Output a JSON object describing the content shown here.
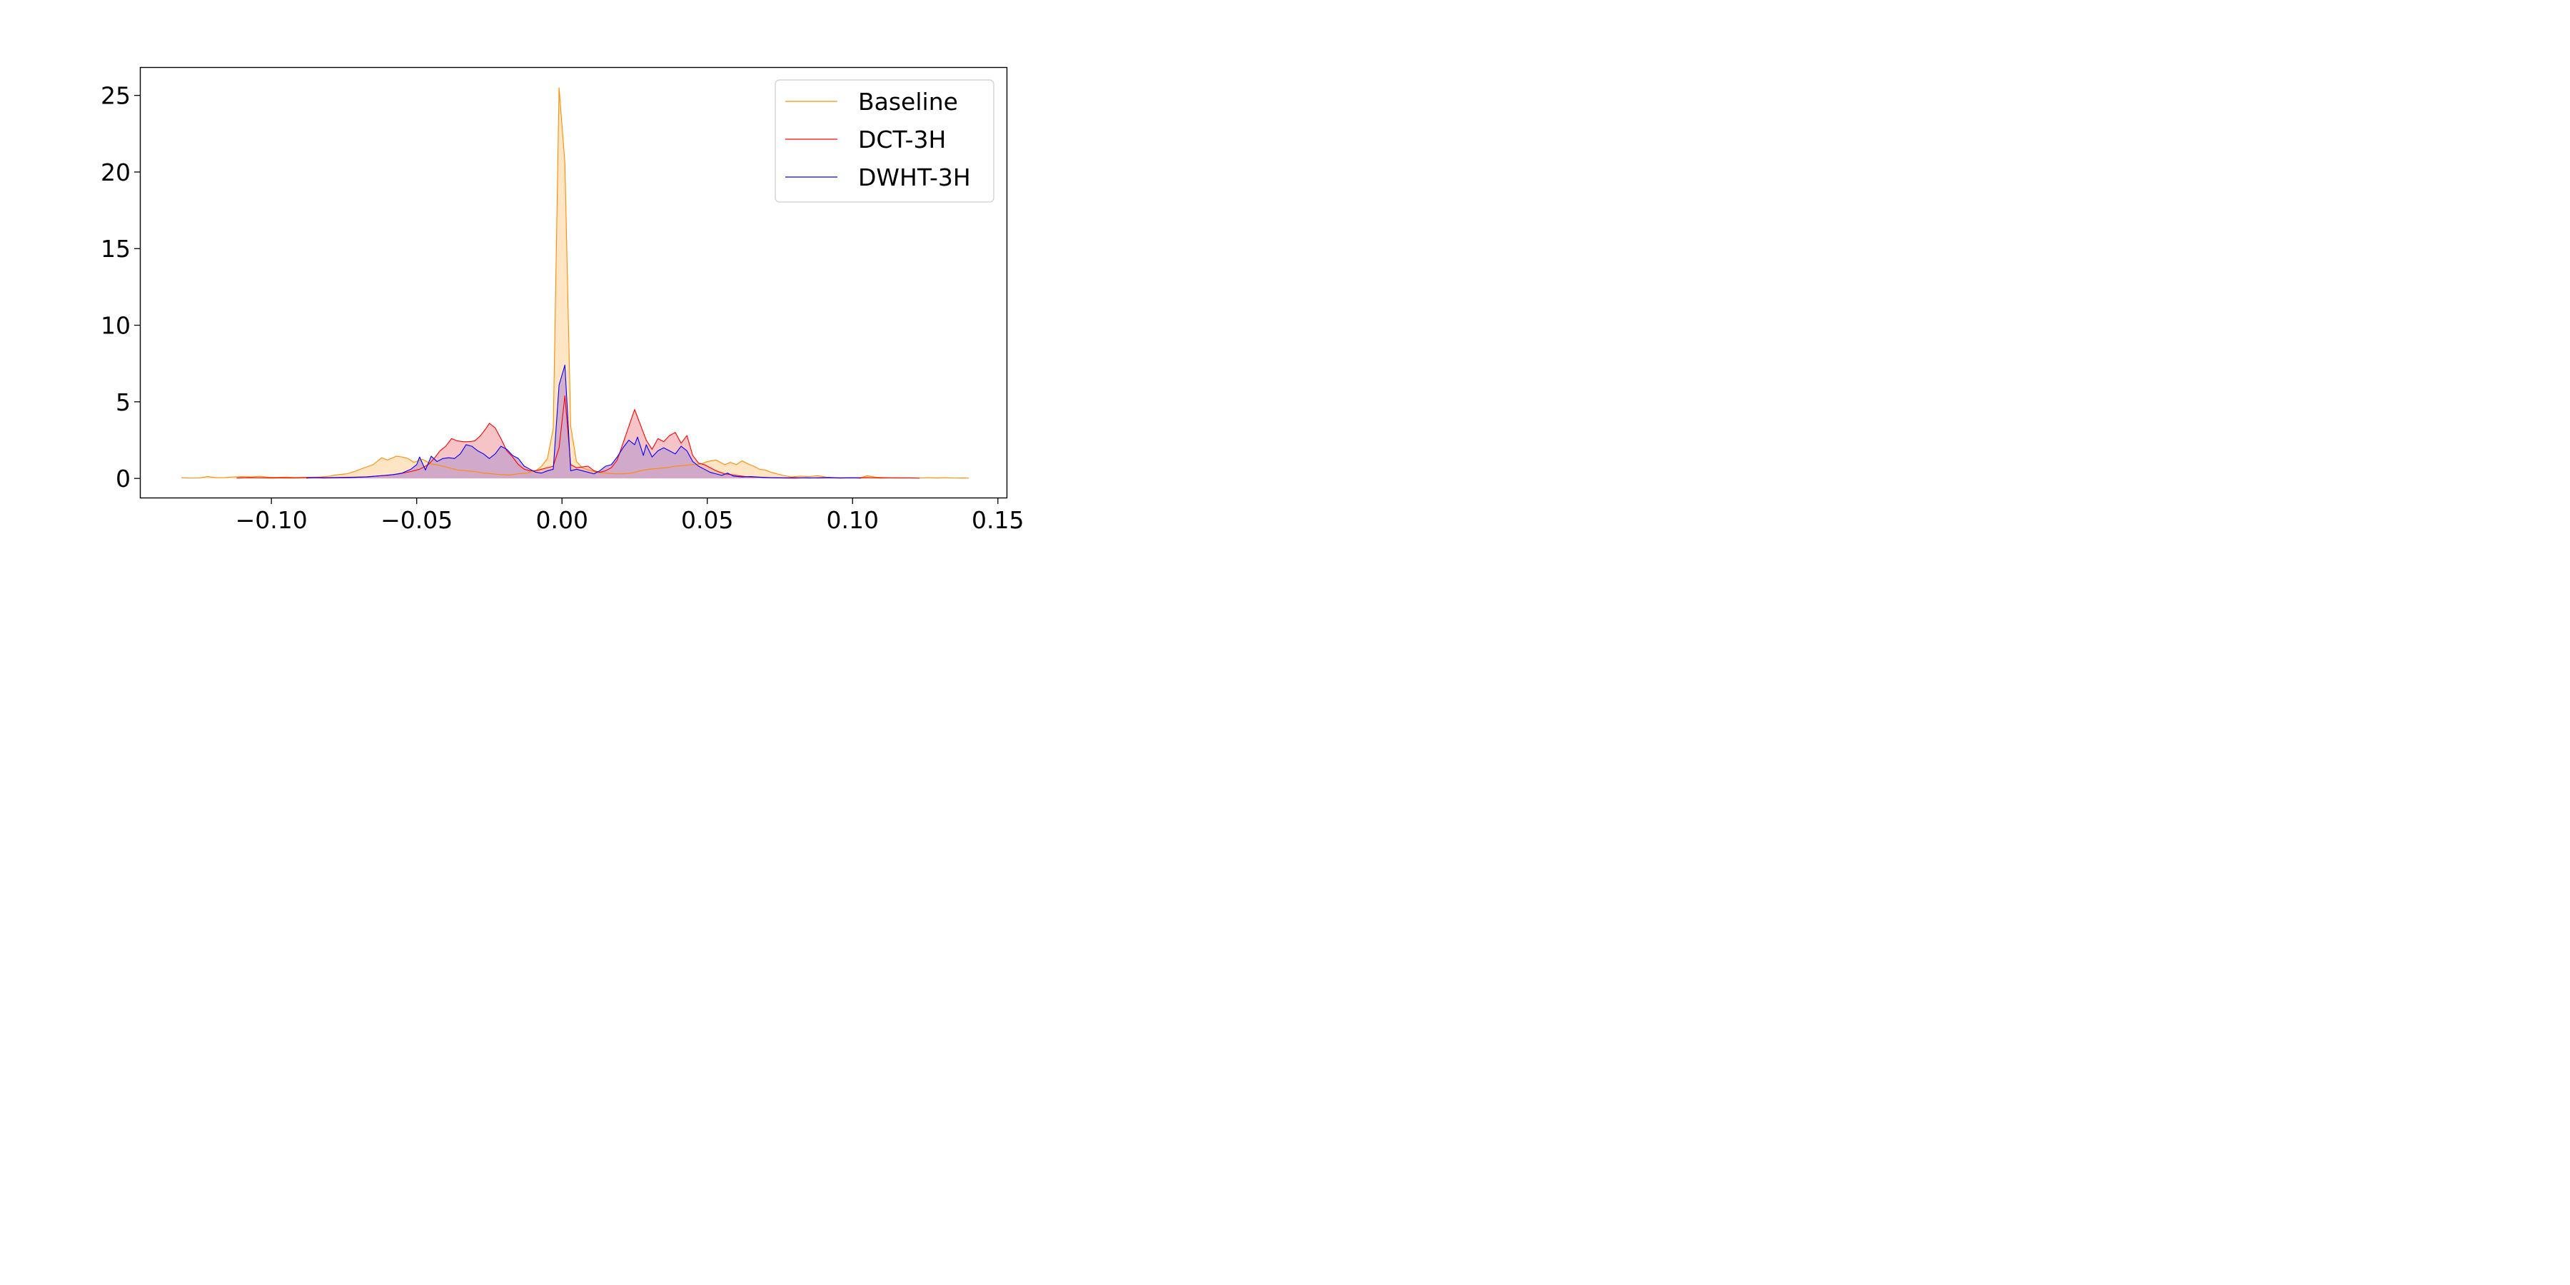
{
  "chart_data": {
    "type": "area",
    "title": "",
    "xlabel": "",
    "ylabel": "",
    "xlim": [
      -0.145,
      0.153
    ],
    "ylim": [
      -1.25,
      26.8
    ],
    "xticks": [
      -0.1,
      -0.05,
      0.0,
      0.05,
      0.1,
      0.15
    ],
    "xtick_labels": [
      "−0.10",
      "−0.05",
      "0.00",
      "0.05",
      "0.10",
      "0.15"
    ],
    "yticks": [
      0,
      5,
      10,
      15,
      20,
      25
    ],
    "ytick_labels": [
      "0",
      "5",
      "10",
      "15",
      "20",
      "25"
    ],
    "grid": false,
    "legend_position": "top-right",
    "series": [
      {
        "name": "Baseline",
        "color": "#ff8c00",
        "fill": "#ffe1b8",
        "points": [
          [
            -0.131,
            0.05
          ],
          [
            -0.128,
            0.02
          ],
          [
            -0.125,
            0.03
          ],
          [
            -0.122,
            0.12
          ],
          [
            -0.119,
            0.05
          ],
          [
            -0.116,
            0.06
          ],
          [
            -0.113,
            0.1
          ],
          [
            -0.11,
            0.12
          ],
          [
            -0.107,
            0.1
          ],
          [
            -0.104,
            0.14
          ],
          [
            -0.101,
            0.08
          ],
          [
            -0.098,
            0.07
          ],
          [
            -0.095,
            0.09
          ],
          [
            -0.092,
            0.06
          ],
          [
            -0.089,
            0.07
          ],
          [
            -0.086,
            0.08
          ],
          [
            -0.083,
            0.1
          ],
          [
            -0.08,
            0.15
          ],
          [
            -0.077,
            0.25
          ],
          [
            -0.074,
            0.3
          ],
          [
            -0.071,
            0.48
          ],
          [
            -0.068,
            0.7
          ],
          [
            -0.065,
            0.9
          ],
          [
            -0.062,
            1.35
          ],
          [
            -0.06,
            1.2
          ],
          [
            -0.057,
            1.45
          ],
          [
            -0.055,
            1.4
          ],
          [
            -0.053,
            1.3
          ],
          [
            -0.051,
            1.05
          ],
          [
            -0.048,
            1.25
          ],
          [
            -0.045,
            0.95
          ],
          [
            -0.042,
            0.85
          ],
          [
            -0.039,
            0.7
          ],
          [
            -0.036,
            0.55
          ],
          [
            -0.033,
            0.5
          ],
          [
            -0.03,
            0.45
          ],
          [
            -0.027,
            0.35
          ],
          [
            -0.024,
            0.3
          ],
          [
            -0.021,
            0.25
          ],
          [
            -0.018,
            0.22
          ],
          [
            -0.015,
            0.3
          ],
          [
            -0.012,
            0.35
          ],
          [
            -0.009,
            0.5
          ],
          [
            -0.007,
            0.8
          ],
          [
            -0.005,
            1.3
          ],
          [
            -0.003,
            3.3
          ],
          [
            -0.001,
            25.5
          ],
          [
            0.001,
            20.6
          ],
          [
            0.003,
            3.4
          ],
          [
            0.005,
            1.1
          ],
          [
            0.007,
            0.7
          ],
          [
            0.009,
            0.55
          ],
          [
            0.012,
            0.4
          ],
          [
            0.015,
            0.35
          ],
          [
            0.018,
            0.3
          ],
          [
            0.021,
            0.3
          ],
          [
            0.024,
            0.35
          ],
          [
            0.027,
            0.5
          ],
          [
            0.03,
            0.6
          ],
          [
            0.033,
            0.65
          ],
          [
            0.036,
            0.7
          ],
          [
            0.039,
            0.8
          ],
          [
            0.042,
            0.85
          ],
          [
            0.045,
            0.9
          ],
          [
            0.048,
            0.95
          ],
          [
            0.05,
            1.1
          ],
          [
            0.053,
            1.2
          ],
          [
            0.056,
            0.9
          ],
          [
            0.058,
            1.05
          ],
          [
            0.06,
            0.9
          ],
          [
            0.062,
            1.15
          ],
          [
            0.064,
            0.95
          ],
          [
            0.066,
            0.8
          ],
          [
            0.068,
            0.6
          ],
          [
            0.07,
            0.55
          ],
          [
            0.072,
            0.4
          ],
          [
            0.074,
            0.3
          ],
          [
            0.076,
            0.2
          ],
          [
            0.079,
            0.1
          ],
          [
            0.082,
            0.15
          ],
          [
            0.085,
            0.12
          ],
          [
            0.088,
            0.18
          ],
          [
            0.091,
            0.08
          ],
          [
            0.094,
            0.05
          ],
          [
            0.097,
            0.05
          ],
          [
            0.1,
            0.04
          ],
          [
            0.103,
            0.06
          ],
          [
            0.105,
            0.18
          ],
          [
            0.108,
            0.08
          ],
          [
            0.111,
            0.05
          ],
          [
            0.114,
            0.03
          ],
          [
            0.117,
            0.02
          ],
          [
            0.12,
            0.04
          ],
          [
            0.123,
            0.02
          ],
          [
            0.126,
            0.05
          ],
          [
            0.129,
            0.03
          ],
          [
            0.132,
            0.05
          ],
          [
            0.135,
            0.02
          ],
          [
            0.138,
            0.03
          ],
          [
            0.14,
            0.02
          ]
        ]
      },
      {
        "name": "DCT-3H",
        "color": "#ff0000",
        "fill": "#f4b4b6",
        "points": [
          [
            -0.112,
            0.03
          ],
          [
            -0.108,
            0.05
          ],
          [
            -0.104,
            0.04
          ],
          [
            -0.1,
            0.03
          ],
          [
            -0.096,
            0.04
          ],
          [
            -0.092,
            0.03
          ],
          [
            -0.088,
            0.05
          ],
          [
            -0.084,
            0.06
          ],
          [
            -0.08,
            0.05
          ],
          [
            -0.076,
            0.07
          ],
          [
            -0.072,
            0.08
          ],
          [
            -0.068,
            0.1
          ],
          [
            -0.064,
            0.15
          ],
          [
            -0.06,
            0.2
          ],
          [
            -0.056,
            0.3
          ],
          [
            -0.052,
            0.45
          ],
          [
            -0.049,
            0.6
          ],
          [
            -0.046,
            0.9
          ],
          [
            -0.044,
            1.3
          ],
          [
            -0.042,
            1.8
          ],
          [
            -0.04,
            2.1
          ],
          [
            -0.038,
            2.6
          ],
          [
            -0.036,
            2.45
          ],
          [
            -0.034,
            2.4
          ],
          [
            -0.032,
            2.4
          ],
          [
            -0.03,
            2.45
          ],
          [
            -0.028,
            2.8
          ],
          [
            -0.026,
            3.3
          ],
          [
            -0.025,
            3.6
          ],
          [
            -0.023,
            3.3
          ],
          [
            -0.021,
            2.6
          ],
          [
            -0.019,
            1.8
          ],
          [
            -0.017,
            1.4
          ],
          [
            -0.015,
            0.9
          ],
          [
            -0.013,
            0.6
          ],
          [
            -0.011,
            0.5
          ],
          [
            -0.009,
            0.5
          ],
          [
            -0.007,
            0.6
          ],
          [
            -0.005,
            0.7
          ],
          [
            -0.003,
            0.8
          ],
          [
            -0.001,
            2.0
          ],
          [
            0.001,
            5.4
          ],
          [
            0.003,
            0.9
          ],
          [
            0.005,
            0.7
          ],
          [
            0.007,
            0.75
          ],
          [
            0.009,
            0.8
          ],
          [
            0.011,
            0.5
          ],
          [
            0.013,
            0.4
          ],
          [
            0.015,
            0.5
          ],
          [
            0.017,
            0.7
          ],
          [
            0.019,
            1.2
          ],
          [
            0.021,
            2.3
          ],
          [
            0.023,
            3.4
          ],
          [
            0.025,
            4.5
          ],
          [
            0.027,
            3.5
          ],
          [
            0.029,
            2.5
          ],
          [
            0.031,
            1.9
          ],
          [
            0.033,
            2.6
          ],
          [
            0.035,
            2.4
          ],
          [
            0.037,
            2.8
          ],
          [
            0.039,
            3.0
          ],
          [
            0.041,
            2.3
          ],
          [
            0.043,
            2.8
          ],
          [
            0.045,
            1.5
          ],
          [
            0.047,
            1.0
          ],
          [
            0.049,
            0.9
          ],
          [
            0.051,
            0.7
          ],
          [
            0.053,
            0.5
          ],
          [
            0.056,
            0.3
          ],
          [
            0.06,
            0.2
          ],
          [
            0.064,
            0.1
          ],
          [
            0.068,
            0.08
          ],
          [
            0.072,
            0.05
          ],
          [
            0.076,
            0.04
          ],
          [
            0.08,
            0.05
          ],
          [
            0.085,
            0.03
          ],
          [
            0.09,
            0.05
          ],
          [
            0.095,
            0.03
          ],
          [
            0.1,
            0.04
          ],
          [
            0.105,
            0.05
          ],
          [
            0.11,
            0.03
          ],
          [
            0.115,
            0.04
          ],
          [
            0.12,
            0.03
          ],
          [
            0.123,
            0.02
          ]
        ]
      },
      {
        "name": "DWHT-3H",
        "color": "#0000ff",
        "fill": "#c7a2cb",
        "points": [
          [
            -0.088,
            0.02
          ],
          [
            -0.085,
            0.05
          ],
          [
            -0.082,
            0.03
          ],
          [
            -0.079,
            0.04
          ],
          [
            -0.076,
            0.05
          ],
          [
            -0.073,
            0.06
          ],
          [
            -0.07,
            0.08
          ],
          [
            -0.067,
            0.1
          ],
          [
            -0.064,
            0.15
          ],
          [
            -0.061,
            0.2
          ],
          [
            -0.058,
            0.25
          ],
          [
            -0.055,
            0.35
          ],
          [
            -0.052,
            0.6
          ],
          [
            -0.05,
            0.9
          ],
          [
            -0.049,
            1.4
          ],
          [
            -0.047,
            0.55
          ],
          [
            -0.045,
            1.45
          ],
          [
            -0.043,
            1.1
          ],
          [
            -0.041,
            1.3
          ],
          [
            -0.039,
            1.35
          ],
          [
            -0.037,
            1.3
          ],
          [
            -0.035,
            1.6
          ],
          [
            -0.033,
            2.2
          ],
          [
            -0.031,
            2.1
          ],
          [
            -0.029,
            1.8
          ],
          [
            -0.027,
            1.6
          ],
          [
            -0.025,
            1.3
          ],
          [
            -0.023,
            1.6
          ],
          [
            -0.021,
            2.1
          ],
          [
            -0.019,
            1.9
          ],
          [
            -0.017,
            1.5
          ],
          [
            -0.015,
            1.3
          ],
          [
            -0.013,
            0.8
          ],
          [
            -0.011,
            0.6
          ],
          [
            -0.009,
            0.4
          ],
          [
            -0.007,
            0.35
          ],
          [
            -0.005,
            0.5
          ],
          [
            -0.003,
            0.6
          ],
          [
            -0.001,
            6.1
          ],
          [
            0.001,
            7.4
          ],
          [
            0.003,
            0.5
          ],
          [
            0.005,
            0.6
          ],
          [
            0.007,
            0.5
          ],
          [
            0.009,
            0.4
          ],
          [
            0.011,
            0.3
          ],
          [
            0.013,
            0.5
          ],
          [
            0.015,
            0.8
          ],
          [
            0.017,
            0.9
          ],
          [
            0.019,
            1.4
          ],
          [
            0.021,
            2.0
          ],
          [
            0.023,
            2.5
          ],
          [
            0.025,
            2.2
          ],
          [
            0.026,
            2.7
          ],
          [
            0.028,
            1.5
          ],
          [
            0.029,
            2.2
          ],
          [
            0.031,
            1.4
          ],
          [
            0.033,
            1.8
          ],
          [
            0.035,
            2.0
          ],
          [
            0.037,
            1.8
          ],
          [
            0.039,
            1.6
          ],
          [
            0.041,
            2.1
          ],
          [
            0.043,
            1.8
          ],
          [
            0.045,
            1.1
          ],
          [
            0.047,
            0.8
          ],
          [
            0.049,
            0.6
          ],
          [
            0.051,
            0.4
          ],
          [
            0.053,
            0.3
          ],
          [
            0.055,
            0.2
          ],
          [
            0.057,
            0.35
          ],
          [
            0.059,
            0.15
          ],
          [
            0.062,
            0.1
          ],
          [
            0.065,
            0.12
          ],
          [
            0.068,
            0.08
          ],
          [
            0.071,
            0.05
          ],
          [
            0.074,
            0.04
          ],
          [
            0.077,
            0.03
          ],
          [
            0.08,
            0.02
          ],
          [
            0.084,
            0.04
          ],
          [
            0.088,
            0.03
          ],
          [
            0.092,
            0.05
          ],
          [
            0.096,
            0.03
          ],
          [
            0.1,
            0.04
          ],
          [
            0.103,
            0.02
          ]
        ]
      }
    ]
  }
}
